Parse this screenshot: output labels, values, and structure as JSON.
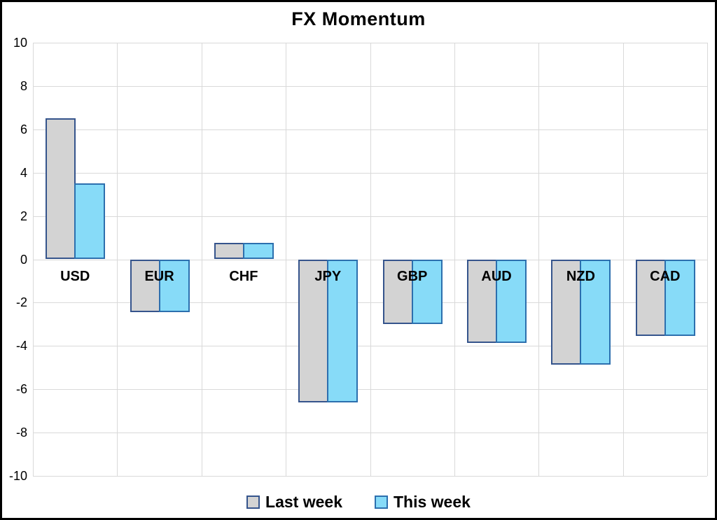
{
  "title": "FX Momentum",
  "colors": {
    "background": "#FFFFFF",
    "frame_border": "#000000",
    "gridline": "#D9D9D9",
    "text": "#000000",
    "last_week_fill": "#D3D3D3",
    "last_week_stroke": "#35548C",
    "this_week_fill": "#87DBF8",
    "this_week_stroke": "#2C6FAE"
  },
  "chart_data": {
    "type": "bar",
    "title": "FX Momentum",
    "categories": [
      "USD",
      "EUR",
      "CHF",
      "JPY",
      "GBP",
      "AUD",
      "NZD",
      "CAD"
    ],
    "series": [
      {
        "name": "Last week",
        "values": [
          6.5,
          -2.45,
          0.75,
          -6.6,
          -3.0,
          -3.85,
          -4.85,
          -3.55
        ],
        "fill": "#D3D3D3",
        "stroke": "#35548C"
      },
      {
        "name": "This week",
        "values": [
          3.5,
          -2.45,
          0.75,
          -6.6,
          -3.0,
          -3.85,
          -4.85,
          -3.55
        ],
        "fill": "#87DBF8",
        "stroke": "#2C6FAE"
      }
    ],
    "xlabel": "",
    "ylabel": "",
    "ylim": [
      -10,
      10
    ],
    "ytick_step": 2,
    "grid": true,
    "legend_position": "bottom"
  }
}
